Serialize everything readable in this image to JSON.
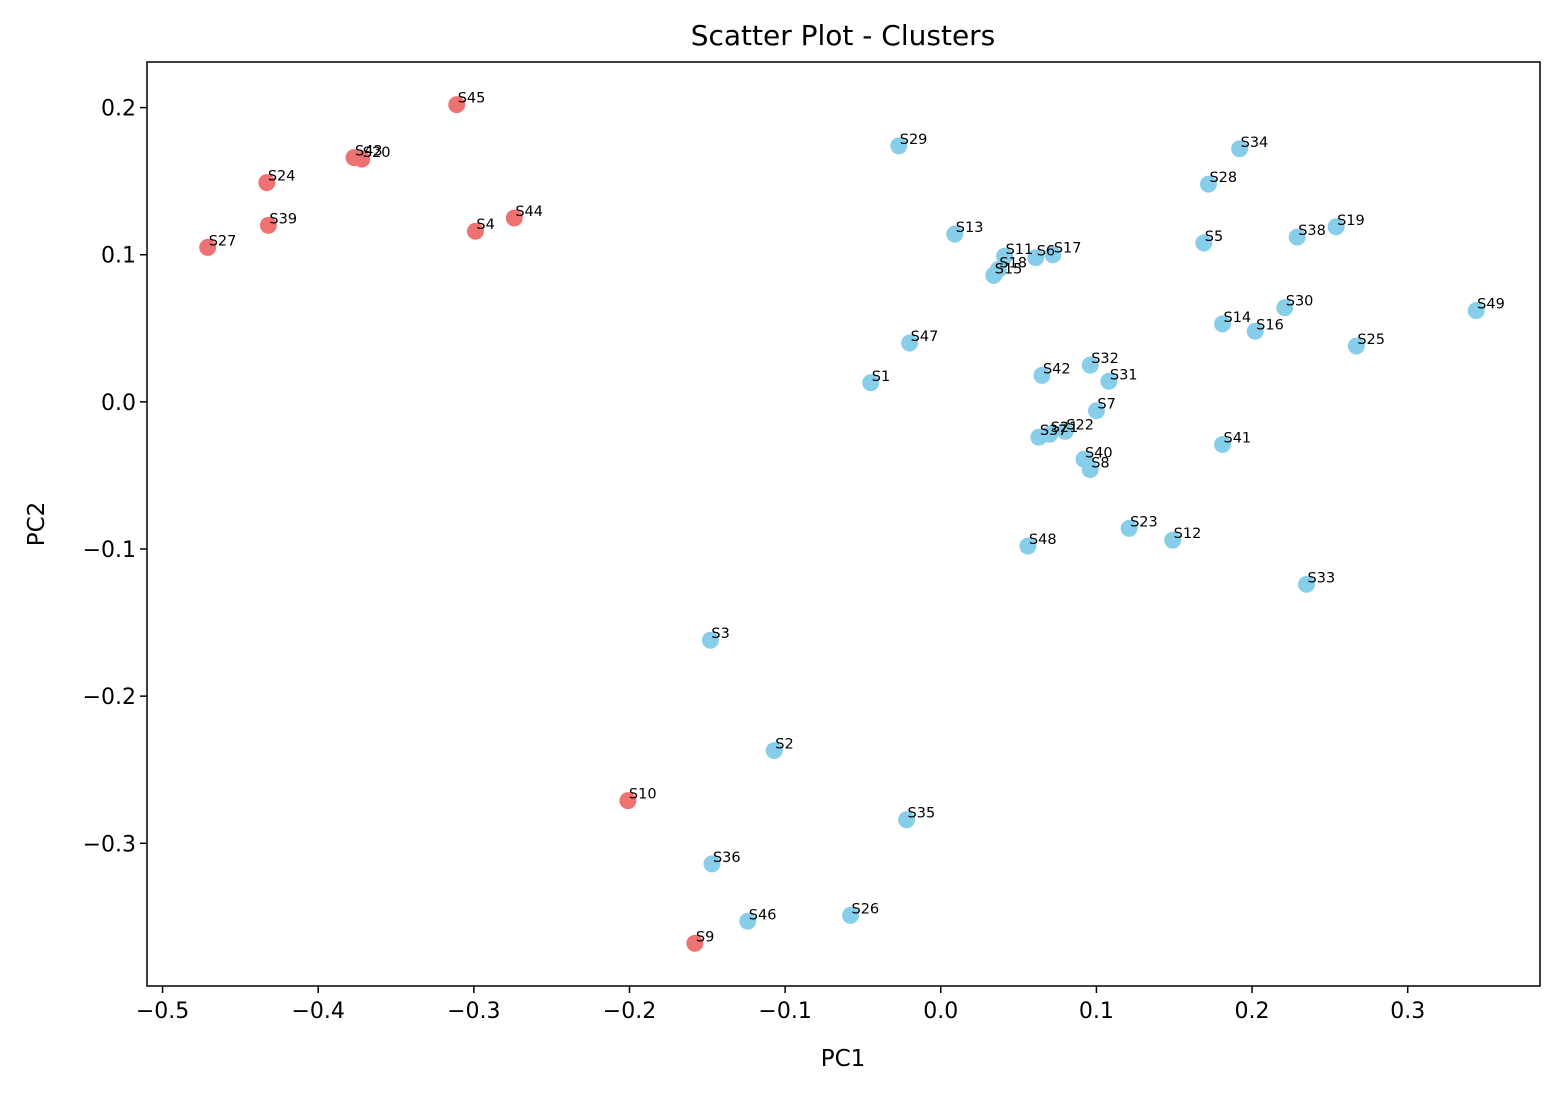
{
  "chart_data": {
    "type": "scatter",
    "title": "Scatter Plot - Clusters",
    "xlabel": "PC1",
    "ylabel": "PC2",
    "xlim": [
      -0.51,
      0.385
    ],
    "ylim": [
      -0.397,
      0.231
    ],
    "xticks": [
      -0.5,
      -0.4,
      -0.3,
      -0.2,
      -0.1,
      0.0,
      0.1,
      0.2,
      0.3
    ],
    "yticks": [
      -0.3,
      -0.2,
      -0.1,
      0.0,
      0.1,
      0.2
    ],
    "xtick_labels": [
      "−0.5",
      "−0.4",
      "−0.3",
      "−0.2",
      "−0.1",
      "0.0",
      "0.1",
      "0.2",
      "0.3"
    ],
    "ytick_labels": [
      "−0.3",
      "−0.2",
      "−0.1",
      "0.0",
      "0.1",
      "0.2"
    ],
    "grid": false,
    "colors": {
      "cluster_red": "#ee7272",
      "cluster_blue": "#87ceeb"
    },
    "points": [
      {
        "label": "S1",
        "x": -0.045,
        "y": 0.013,
        "cluster": 1
      },
      {
        "label": "S2",
        "x": -0.107,
        "y": -0.237,
        "cluster": 1
      },
      {
        "label": "S3",
        "x": -0.148,
        "y": -0.162,
        "cluster": 1
      },
      {
        "label": "S4",
        "x": -0.299,
        "y": 0.116,
        "cluster": 0
      },
      {
        "label": "S5",
        "x": 0.169,
        "y": 0.108,
        "cluster": 1
      },
      {
        "label": "S6",
        "x": 0.061,
        "y": 0.098,
        "cluster": 1
      },
      {
        "label": "S7",
        "x": 0.1,
        "y": -0.006,
        "cluster": 1
      },
      {
        "label": "S8",
        "x": 0.096,
        "y": -0.046,
        "cluster": 1
      },
      {
        "label": "S9",
        "x": -0.158,
        "y": -0.368,
        "cluster": 0
      },
      {
        "label": "S10",
        "x": -0.201,
        "y": -0.271,
        "cluster": 0
      },
      {
        "label": "S11",
        "x": 0.041,
        "y": 0.099,
        "cluster": 1
      },
      {
        "label": "S12",
        "x": 0.149,
        "y": -0.094,
        "cluster": 1
      },
      {
        "label": "S13",
        "x": 0.009,
        "y": 0.114,
        "cluster": 1
      },
      {
        "label": "S14",
        "x": 0.181,
        "y": 0.053,
        "cluster": 1
      },
      {
        "label": "S15",
        "x": 0.034,
        "y": 0.086,
        "cluster": 1
      },
      {
        "label": "S16",
        "x": 0.202,
        "y": 0.048,
        "cluster": 1
      },
      {
        "label": "S17",
        "x": 0.072,
        "y": 0.1,
        "cluster": 1
      },
      {
        "label": "S18",
        "x": 0.037,
        "y": 0.09,
        "cluster": 1
      },
      {
        "label": "S19",
        "x": 0.254,
        "y": 0.119,
        "cluster": 1
      },
      {
        "label": "S20",
        "x": -0.372,
        "y": 0.165,
        "cluster": 0
      },
      {
        "label": "S21",
        "x": 0.07,
        "y": -0.022,
        "cluster": 1
      },
      {
        "label": "S22",
        "x": 0.08,
        "y": -0.02,
        "cluster": 1
      },
      {
        "label": "S23",
        "x": 0.121,
        "y": -0.086,
        "cluster": 1
      },
      {
        "label": "S24",
        "x": -0.433,
        "y": 0.149,
        "cluster": 0
      },
      {
        "label": "S25",
        "x": 0.267,
        "y": 0.038,
        "cluster": 1
      },
      {
        "label": "S26",
        "x": -0.058,
        "y": -0.349,
        "cluster": 1
      },
      {
        "label": "S27",
        "x": -0.471,
        "y": 0.105,
        "cluster": 0
      },
      {
        "label": "S28",
        "x": 0.172,
        "y": 0.148,
        "cluster": 1
      },
      {
        "label": "S29",
        "x": -0.027,
        "y": 0.174,
        "cluster": 1
      },
      {
        "label": "S30",
        "x": 0.221,
        "y": 0.064,
        "cluster": 1
      },
      {
        "label": "S31",
        "x": 0.108,
        "y": 0.014,
        "cluster": 1
      },
      {
        "label": "S32",
        "x": 0.096,
        "y": 0.025,
        "cluster": 1
      },
      {
        "label": "S33",
        "x": 0.235,
        "y": -0.124,
        "cluster": 1
      },
      {
        "label": "S34",
        "x": 0.192,
        "y": 0.172,
        "cluster": 1
      },
      {
        "label": "S35",
        "x": -0.022,
        "y": -0.284,
        "cluster": 1
      },
      {
        "label": "S36",
        "x": -0.147,
        "y": -0.314,
        "cluster": 1
      },
      {
        "label": "S37",
        "x": 0.063,
        "y": -0.024,
        "cluster": 1
      },
      {
        "label": "S38",
        "x": 0.229,
        "y": 0.112,
        "cluster": 1
      },
      {
        "label": "S39",
        "x": -0.432,
        "y": 0.12,
        "cluster": 0
      },
      {
        "label": "S40",
        "x": 0.092,
        "y": -0.039,
        "cluster": 1
      },
      {
        "label": "S41",
        "x": 0.181,
        "y": -0.029,
        "cluster": 1
      },
      {
        "label": "S42",
        "x": 0.065,
        "y": 0.018,
        "cluster": 1
      },
      {
        "label": "S43",
        "x": -0.377,
        "y": 0.166,
        "cluster": 0
      },
      {
        "label": "S44",
        "x": -0.274,
        "y": 0.125,
        "cluster": 0
      },
      {
        "label": "S45",
        "x": -0.311,
        "y": 0.202,
        "cluster": 0
      },
      {
        "label": "S46",
        "x": -0.124,
        "y": -0.353,
        "cluster": 1
      },
      {
        "label": "S47",
        "x": -0.02,
        "y": 0.04,
        "cluster": 1
      },
      {
        "label": "S48",
        "x": 0.056,
        "y": -0.098,
        "cluster": 1
      },
      {
        "label": "S49",
        "x": 0.344,
        "y": 0.062,
        "cluster": 1
      }
    ]
  }
}
